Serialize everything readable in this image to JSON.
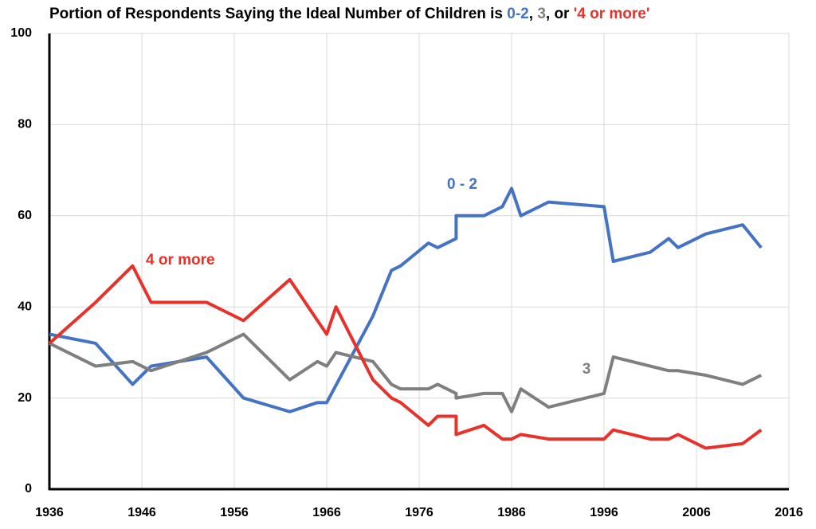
{
  "chart_data": {
    "type": "line",
    "title": [
      "Portion of Respondents Saying the Ideal Number of Children is ",
      "0-2",
      ", ",
      "3",
      ", or ",
      "'4 or more'"
    ],
    "xlim": [
      1936,
      2016
    ],
    "xticks": [
      1936,
      1946,
      1956,
      1966,
      1976,
      1986,
      1996,
      2006,
      2016
    ],
    "ylim": [
      0,
      100
    ],
    "yticks": [
      0,
      20,
      40,
      60,
      80,
      100
    ],
    "grid": true,
    "series": [
      {
        "name": "0 - 2",
        "color": "#4472c4",
        "x": [
          1936,
          1941,
          1945,
          1947,
          1953,
          1957,
          1962,
          1965,
          1966,
          1971,
          1973,
          1974,
          1977,
          1978,
          1980,
          1980,
          1983,
          1985,
          1986,
          1987,
          1990,
          1996,
          1997,
          2001,
          2003,
          2004,
          2007,
          2011,
          2013
        ],
        "values": [
          34,
          32,
          23,
          27,
          29,
          20,
          17,
          19,
          19,
          38,
          48,
          49,
          54,
          53,
          55,
          60,
          60,
          62,
          66,
          60,
          63,
          62,
          50,
          52,
          55,
          53,
          56,
          58,
          53
        ]
      },
      {
        "name": "3",
        "color": "#7f7f7f",
        "x": [
          1936,
          1941,
          1945,
          1947,
          1953,
          1957,
          1962,
          1965,
          1966,
          1967,
          1971,
          1973,
          1974,
          1977,
          1978,
          1980,
          1980,
          1983,
          1985,
          1986,
          1987,
          1990,
          1996,
          1997,
          2001,
          2003,
          2004,
          2007,
          2011,
          2013
        ],
        "values": [
          32,
          27,
          28,
          26,
          30,
          34,
          24,
          28,
          27,
          30,
          28,
          23,
          22,
          22,
          23,
          21,
          20,
          21,
          21,
          17,
          22,
          18,
          21,
          29,
          27,
          26,
          26,
          25,
          23,
          25
        ]
      },
      {
        "name": "4 or more",
        "color": "#e8312a",
        "x": [
          1936,
          1941,
          1945,
          1947,
          1953,
          1957,
          1962,
          1966,
          1967,
          1971,
          1973,
          1974,
          1977,
          1978,
          1980,
          1980,
          1983,
          1985,
          1986,
          1987,
          1990,
          1996,
          1997,
          2001,
          2003,
          2004,
          2007,
          2011,
          2013
        ],
        "values": [
          32,
          41,
          49,
          41,
          41,
          37,
          46,
          34,
          40,
          24,
          20,
          19,
          14,
          16,
          16,
          12,
          14,
          11,
          11,
          12,
          11,
          11,
          13,
          11,
          11,
          12,
          9,
          10,
          13
        ]
      }
    ]
  }
}
